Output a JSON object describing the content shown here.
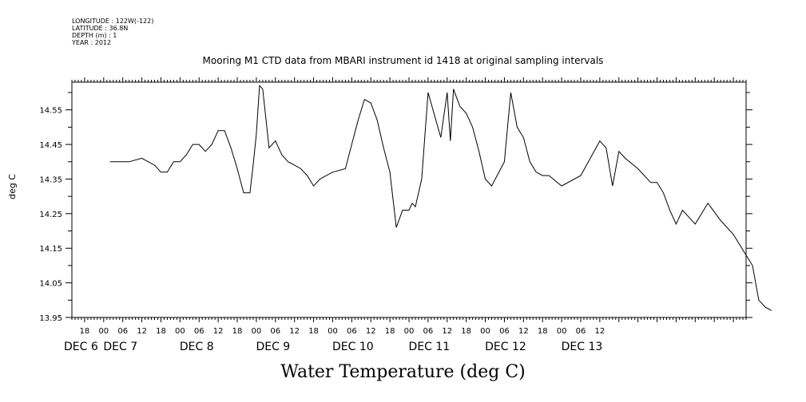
{
  "header": {
    "longitude": "LONGITUDE : 122W(-122)",
    "latitude": "LATITUDE : 36.8N",
    "depth": "DEPTH (m) : 1",
    "year": "YEAR : 2012"
  },
  "chart_data": {
    "type": "line",
    "title": "Mooring M1 CTD data from MBARI instrument id 1418 at original sampling intervals",
    "xlabel": "Water Temperature (deg C)",
    "ylabel": "deg C",
    "ylim": [
      13.95,
      14.63
    ],
    "yticks": [
      "14.55",
      "14.45",
      "14.35",
      "14.25",
      "14.15",
      "14.05",
      "13.95"
    ],
    "xlim_hours": [
      -10,
      202
    ],
    "hour_labels": [
      "18",
      "00",
      "06",
      "12",
      "18",
      "00",
      "06",
      "12",
      "18",
      "00",
      "06",
      "12",
      "18",
      "00",
      "06",
      "12",
      "18",
      "00",
      "06",
      "12",
      "18",
      "00",
      "06",
      "12",
      "18",
      "00",
      "06",
      "12"
    ],
    "date_labels": [
      "DEC 6",
      "DEC 7",
      "DEC 8",
      "DEC 9",
      "DEC 10",
      "DEC 11",
      "DEC 12",
      "DEC 13"
    ],
    "color": "#000000",
    "series": [
      {
        "x": [
          "Dec 6 02:00",
          "Dec 6 08:00",
          "Dec 6 12:00",
          "Dec 6 14:00",
          "Dec 6 16:00",
          "Dec 6 18:00",
          "Dec 6 20:00",
          "Dec 6 22:00",
          "Dec 7 00:00",
          "Dec 7 02:00",
          "Dec 7 04:00",
          "Dec 7 06:00",
          "Dec 7 08:00",
          "Dec 7 10:00",
          "Dec 7 12:00",
          "Dec 7 14:00",
          "Dec 7 16:00",
          "Dec 7 18:00",
          "Dec 7 20:00",
          "Dec 7 22:00",
          "Dec 7 23:00",
          "Dec 8 00:00",
          "Dec 8 01:00",
          "Dec 8 02:00",
          "Dec 8 04:00",
          "Dec 8 06:00",
          "Dec 8 08:00",
          "Dec 8 10:00",
          "Dec 8 12:00",
          "Dec 8 14:00",
          "Dec 8 16:00",
          "Dec 8 18:00",
          "Dec 8 20:00",
          "Dec 8 22:00",
          "Dec 9 00:00",
          "Dec 9 04:00",
          "Dec 9 06:00",
          "Dec 9 08:00",
          "Dec 9 10:00",
          "Dec 9 12:00",
          "Dec 9 14:00",
          "Dec 9 16:00",
          "Dec 9 18:00",
          "Dec 9 20:00",
          "Dec 9 22:00",
          "Dec 10 00:00",
          "Dec 10 01:00",
          "Dec 10 02:00",
          "Dec 10 04:00",
          "Dec 10 06:00",
          "Dec 10 10:00",
          "Dec 10 12:00",
          "Dec 10 13:00",
          "Dec 10 14:00",
          "Dec 10 16:00",
          "Dec 10 18:00",
          "Dec 10 20:00",
          "Dec 10 22:00",
          "Dec 11 00:00",
          "Dec 11 02:00",
          "Dec 11 06:00",
          "Dec 11 08:00",
          "Dec 11 10:00",
          "Dec 11 12:00",
          "Dec 11 14:00",
          "Dec 11 16:00",
          "Dec 11 18:00",
          "Dec 11 20:00",
          "Dec 12 00:00",
          "Dec 12 06:00",
          "Dec 12 12:00",
          "Dec 12 14:00",
          "Dec 12 16:00",
          "Dec 12 18:00",
          "Dec 12 20:00",
          "Dec 13 00:00",
          "Dec 13 02:00",
          "Dec 13 04:00",
          "Dec 13 06:00",
          "Dec 13 08:00",
          "Dec 13 10:00",
          "Dec 13 12:00",
          "Dec 13 14:00",
          "Dec 13 18:00",
          "Dec 13 22:00",
          "Dec 14 02:00",
          "Dec 14 06:00",
          "Dec 14 08:00",
          "Dec 14 10:00",
          "Dec 14 12:00",
          "Dec 14 14:00",
          "Dec 14 16:00",
          "Dec 14 18:00",
          "Dec 14 20:00",
          "Dec 14 21:00",
          "Dec 14 22:00"
        ],
        "y": [
          14.4,
          14.4,
          14.41,
          14.4,
          14.39,
          14.37,
          14.37,
          14.4,
          14.4,
          14.42,
          14.45,
          14.45,
          14.43,
          14.45,
          14.49,
          14.49,
          14.44,
          14.38,
          14.31,
          14.31,
          14.39,
          14.48,
          14.62,
          14.61,
          14.44,
          14.46,
          14.42,
          14.4,
          14.39,
          14.38,
          14.36,
          14.33,
          14.35,
          14.36,
          14.37,
          14.38,
          14.45,
          14.52,
          14.58,
          14.57,
          14.52,
          14.44,
          14.37,
          14.21,
          14.26,
          14.26,
          14.28,
          14.27,
          14.35,
          14.6,
          14.47,
          14.6,
          14.46,
          14.61,
          14.56,
          14.54,
          14.5,
          14.43,
          14.35,
          14.33,
          14.4,
          14.6,
          14.5,
          14.47,
          14.4,
          14.37,
          14.36,
          14.36,
          14.33,
          14.36,
          14.46,
          14.44,
          14.33,
          14.43,
          14.41,
          14.38,
          14.36,
          14.34,
          14.34,
          14.31,
          14.26,
          14.22,
          14.26,
          14.22,
          14.28,
          14.23,
          14.19,
          14.16,
          14.13,
          14.1,
          14.0,
          13.98,
          13.97,
          null,
          null,
          null
        ]
      }
    ]
  }
}
